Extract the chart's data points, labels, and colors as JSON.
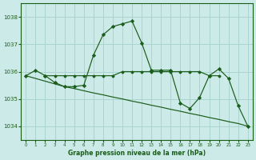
{
  "title": "Graphe pression niveau de la mer (hPa)",
  "background_color": "#cceae7",
  "grid_color": "#aad4d0",
  "line_color": "#1a5c1a",
  "series1_x": [
    0,
    1,
    2,
    3,
    4,
    5,
    6,
    7,
    8,
    9,
    10,
    11,
    12,
    13,
    14,
    15,
    16,
    17,
    18,
    19,
    20,
    21,
    22,
    23
  ],
  "series1_y": [
    1035.85,
    1036.05,
    1035.85,
    1035.6,
    1035.45,
    1035.45,
    1035.5,
    1036.6,
    1037.35,
    1037.65,
    1037.75,
    1037.85,
    1037.05,
    1036.05,
    1036.05,
    1036.05,
    1034.85,
    1034.65,
    1035.05,
    1035.85,
    1036.1,
    1035.75,
    1034.75,
    1034.0
  ],
  "series2_x": [
    2,
    3,
    4,
    5,
    6,
    7,
    8,
    9,
    10,
    11,
    12,
    13,
    14,
    15,
    16,
    17,
    18,
    19,
    20
  ],
  "series2_y": [
    1035.85,
    1035.85,
    1035.85,
    1035.85,
    1035.85,
    1035.85,
    1035.85,
    1035.85,
    1036.0,
    1036.0,
    1036.0,
    1036.0,
    1036.0,
    1036.0,
    1036.0,
    1036.0,
    1036.0,
    1035.85,
    1035.85
  ],
  "series3_x": [
    0,
    1,
    2,
    3,
    4,
    5,
    6,
    7,
    8,
    9,
    10,
    11,
    12,
    13,
    14,
    15,
    16,
    17,
    18,
    19,
    20,
    21,
    22,
    23
  ],
  "series3_y": [
    1035.85,
    1035.75,
    1035.65,
    1035.55,
    1035.45,
    1035.38,
    1035.3,
    1035.22,
    1035.15,
    1035.07,
    1035.0,
    1034.92,
    1034.85,
    1034.77,
    1034.7,
    1034.62,
    1034.55,
    1034.47,
    1034.4,
    1034.32,
    1034.25,
    1034.17,
    1034.1,
    1034.0
  ],
  "ylim": [
    1033.5,
    1038.5
  ],
  "xlim": [
    -0.5,
    23.5
  ],
  "yticks": [
    1034,
    1035,
    1036,
    1037,
    1038
  ],
  "xticks": [
    0,
    1,
    2,
    3,
    4,
    5,
    6,
    7,
    8,
    9,
    10,
    11,
    12,
    13,
    14,
    15,
    16,
    17,
    18,
    19,
    20,
    21,
    22,
    23
  ]
}
